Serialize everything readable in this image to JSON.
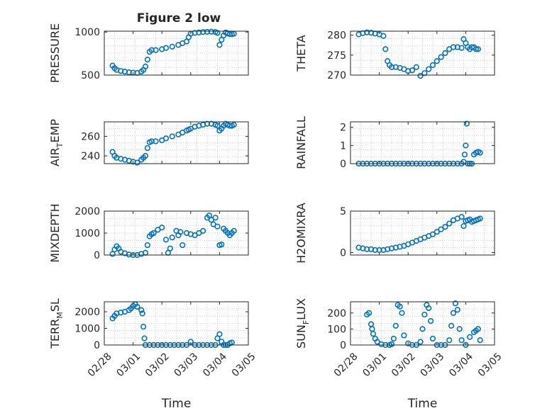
{
  "figure_title": "Figure 2 low",
  "colors": {
    "marker": "#0072BD",
    "grid": "#c8c8c8",
    "axis": "#262626",
    "background": "#ffffff"
  },
  "chart_data": [
    {
      "id": "pressure",
      "type": "scatter",
      "ylabel": "PRESSURE",
      "xlabel": "",
      "xlim": [
        0,
        7
      ],
      "ylim": [
        500,
        1010
      ],
      "yticks": [
        500,
        1000
      ],
      "ytick_labels": [
        "500",
        "1000"
      ],
      "xticks": [],
      "xtick_labels": [],
      "x": [
        0.4,
        0.5,
        0.6,
        0.8,
        1.0,
        1.2,
        1.4,
        1.6,
        1.8,
        1.9,
        2.0,
        2.1,
        2.2,
        2.3,
        2.5,
        2.8,
        3.0,
        3.3,
        3.6,
        3.8,
        4.0,
        4.1,
        4.2,
        4.4,
        4.6,
        4.8,
        5.0,
        5.2,
        5.4,
        5.5,
        5.6,
        5.7,
        5.8,
        5.9,
        6.0,
        6.1,
        6.2,
        6.3
      ],
      "y": [
        610,
        580,
        560,
        548,
        540,
        532,
        528,
        525,
        540,
        560,
        600,
        680,
        770,
        790,
        790,
        800,
        815,
        830,
        850,
        870,
        890,
        940,
        980,
        990,
        995,
        1000,
        1002,
        1004,
        1000,
        990,
        850,
        910,
        960,
        995,
        985,
        975,
        975,
        980
      ]
    },
    {
      "id": "theta",
      "type": "scatter",
      "ylabel": "THETA",
      "xlabel": "",
      "xlim": [
        0,
        7
      ],
      "ylim": [
        270,
        281
      ],
      "yticks": [
        270,
        275,
        280
      ],
      "ytick_labels": [
        "270",
        "275",
        "280"
      ],
      "xticks": [],
      "xtick_labels": [],
      "x": [
        0.4,
        0.6,
        0.8,
        1.0,
        1.2,
        1.4,
        1.6,
        1.7,
        1.8,
        1.9,
        2.0,
        2.2,
        2.4,
        2.6,
        2.8,
        3.0,
        3.2,
        3.4,
        3.6,
        3.8,
        4.0,
        4.2,
        4.4,
        4.6,
        4.8,
        5.0,
        5.2,
        5.4,
        5.5,
        5.6,
        5.7,
        5.8,
        5.9,
        6.0,
        6.1,
        6.2
      ],
      "y": [
        280.2,
        280.5,
        280.7,
        280.6,
        280.4,
        280.2,
        279.8,
        276.5,
        273.5,
        272.5,
        272.0,
        272.0,
        271.8,
        271.5,
        271.0,
        271.2,
        272.0,
        269.8,
        270.5,
        271.5,
        272.5,
        273.5,
        274.5,
        275.5,
        276.5,
        277.0,
        277.0,
        276.8,
        279.0,
        278.0,
        277.0,
        276.5,
        277.0,
        277.0,
        276.5,
        276.5
      ]
    },
    {
      "id": "air_temp",
      "type": "scatter",
      "ylabel": "AIR_TEMP",
      "ylabel_main": "AIR",
      "ylabel_sub": "T",
      "ylabel_tail": "EMP",
      "xlabel": "",
      "xlim": [
        0,
        7
      ],
      "ylim": [
        232,
        275
      ],
      "yticks": [
        240,
        260
      ],
      "ytick_labels": [
        "240",
        "260"
      ],
      "xticks": [],
      "xtick_labels": [],
      "x": [
        0.4,
        0.5,
        0.6,
        0.8,
        1.0,
        1.2,
        1.4,
        1.6,
        1.8,
        1.9,
        2.0,
        2.1,
        2.2,
        2.3,
        2.5,
        2.8,
        3.0,
        3.3,
        3.6,
        3.8,
        4.0,
        4.1,
        4.2,
        4.4,
        4.6,
        4.8,
        5.0,
        5.2,
        5.4,
        5.5,
        5.6,
        5.7,
        5.8,
        5.9,
        6.0,
        6.1,
        6.2,
        6.3
      ],
      "y": [
        244,
        240,
        238,
        237,
        236,
        235,
        234,
        233,
        236,
        238,
        240,
        248,
        254,
        255,
        255,
        256,
        258,
        260,
        262,
        264,
        266,
        267,
        268,
        270,
        271,
        272,
        273,
        273,
        272,
        271,
        266,
        268,
        271,
        273,
        272,
        271,
        271,
        272
      ]
    },
    {
      "id": "rainfall",
      "type": "scatter",
      "ylabel": "RAINFALL",
      "xlabel": "",
      "xlim": [
        0,
        7
      ],
      "ylim": [
        0,
        2.3
      ],
      "yticks": [
        0,
        1,
        2
      ],
      "ytick_labels": [
        "0",
        "1",
        "2"
      ],
      "xticks": [],
      "xtick_labels": [],
      "x": [
        0.4,
        0.6,
        0.8,
        1.0,
        1.2,
        1.4,
        1.6,
        1.8,
        2.0,
        2.2,
        2.4,
        2.6,
        2.8,
        3.0,
        3.2,
        3.4,
        3.6,
        3.8,
        4.0,
        4.2,
        4.4,
        4.6,
        4.8,
        5.0,
        5.2,
        5.4,
        5.5,
        5.55,
        5.6,
        5.65,
        5.7,
        5.8,
        5.9,
        6.0,
        6.1,
        6.2,
        6.3
      ],
      "y": [
        0,
        0,
        0,
        0,
        0,
        0,
        0,
        0,
        0,
        0,
        0,
        0,
        0,
        0,
        0,
        0,
        0,
        0,
        0,
        0,
        0,
        0,
        0,
        0,
        0,
        0,
        0.1,
        0.5,
        1.0,
        2.2,
        0,
        0,
        0,
        0.5,
        0.6,
        0.65,
        0.6
      ]
    },
    {
      "id": "mixdepth",
      "type": "scatter",
      "ylabel": "MIXDEPTH",
      "xlabel": "",
      "xlim": [
        0,
        7
      ],
      "ylim": [
        0,
        2000
      ],
      "yticks": [
        0,
        1000,
        2000
      ],
      "ytick_labels": [
        "0",
        "1000",
        "2000"
      ],
      "xticks": [],
      "xtick_labels": [],
      "x": [
        0.4,
        0.5,
        0.6,
        0.7,
        0.8,
        1.0,
        1.2,
        1.4,
        1.6,
        1.8,
        2.0,
        2.1,
        2.2,
        2.3,
        2.4,
        2.6,
        2.8,
        3.0,
        3.1,
        3.2,
        3.3,
        3.5,
        3.6,
        3.7,
        3.8,
        4.0,
        4.2,
        4.4,
        4.6,
        4.8,
        5.0,
        5.1,
        5.2,
        5.3,
        5.4,
        5.5,
        5.6,
        5.7,
        5.8,
        5.9,
        6.0,
        6.1,
        6.2,
        6.3
      ],
      "y": [
        50,
        250,
        400,
        300,
        150,
        80,
        20,
        0,
        0,
        50,
        100,
        450,
        850,
        950,
        1000,
        1150,
        1250,
        700,
        100,
        300,
        800,
        1100,
        900,
        1050,
        450,
        1000,
        950,
        900,
        1000,
        1100,
        1700,
        1800,
        1600,
        1400,
        1700,
        1300,
        450,
        480,
        1200,
        1100,
        1000,
        900,
        1000,
        1100
      ]
    },
    {
      "id": "h2omixra",
      "type": "scatter",
      "ylabel": "H2OMIXRA",
      "xlabel": "",
      "xlim": [
        0,
        7
      ],
      "ylim": [
        -0.3,
        5
      ],
      "yticks": [
        0,
        5
      ],
      "ytick_labels": [
        "0",
        "5"
      ],
      "xticks": [],
      "xtick_labels": [],
      "x": [
        0.4,
        0.6,
        0.8,
        1.0,
        1.2,
        1.4,
        1.6,
        1.8,
        2.0,
        2.2,
        2.4,
        2.6,
        2.8,
        3.0,
        3.2,
        3.4,
        3.6,
        3.8,
        4.0,
        4.2,
        4.4,
        4.6,
        4.8,
        5.0,
        5.2,
        5.4,
        5.5,
        5.6,
        5.7,
        5.8,
        5.9,
        6.0,
        6.1,
        6.2,
        6.3
      ],
      "y": [
        0.6,
        0.5,
        0.4,
        0.4,
        0.3,
        0.3,
        0.3,
        0.4,
        0.5,
        0.6,
        0.7,
        0.8,
        1.0,
        1.2,
        1.4,
        1.6,
        1.8,
        2.0,
        2.2,
        2.5,
        2.8,
        3.1,
        3.5,
        3.9,
        4.1,
        4.3,
        3.2,
        3.8,
        3.9,
        4.0,
        3.7,
        3.8,
        3.9,
        4.0,
        4.1
      ]
    },
    {
      "id": "terr_msl",
      "type": "scatter",
      "ylabel": "TERR_MSL",
      "ylabel_main": "TERR",
      "ylabel_sub": "M",
      "ylabel_tail": "SL",
      "xlabel": "Time",
      "xlim": [
        0,
        7
      ],
      "ylim": [
        0,
        2600
      ],
      "yticks": [
        0,
        1000,
        2000
      ],
      "ytick_labels": [
        "0",
        "1000",
        "2000"
      ],
      "xticks": [
        0,
        1.4,
        2.8,
        4.2,
        5.6,
        7.0
      ],
      "xtick_labels": [
        "02/28",
        "03/01",
        "03/02",
        "03/03",
        "03/04",
        "03/05"
      ],
      "x": [
        0.4,
        0.5,
        0.6,
        0.8,
        1.0,
        1.2,
        1.3,
        1.4,
        1.5,
        1.6,
        1.8,
        1.85,
        1.9,
        1.95,
        2.0,
        2.2,
        2.4,
        2.6,
        2.8,
        3.0,
        3.2,
        3.4,
        3.6,
        3.8,
        4.0,
        4.2,
        4.4,
        4.6,
        4.8,
        5.0,
        5.2,
        5.4,
        5.5,
        5.6,
        5.7,
        5.8,
        5.9,
        6.0,
        6.1,
        6.2
      ],
      "y": [
        1600,
        1750,
        1900,
        1950,
        2000,
        2100,
        2200,
        2350,
        2450,
        2300,
        2100,
        1900,
        1100,
        400,
        0,
        0,
        0,
        0,
        0,
        0,
        0,
        0,
        0,
        0,
        0,
        200,
        0,
        0,
        0,
        0,
        0,
        0,
        400,
        650,
        200,
        0,
        0,
        0,
        100,
        150
      ]
    },
    {
      "id": "sun_flux",
      "type": "scatter",
      "ylabel": "SUN_FLUX",
      "ylabel_main": "SUN",
      "ylabel_sub": "F",
      "ylabel_tail": "LUX",
      "xlabel": "Time",
      "xlim": [
        0,
        7
      ],
      "ylim": [
        0,
        270
      ],
      "yticks": [
        0,
        100,
        200
      ],
      "ytick_labels": [
        "0",
        "100",
        "200"
      ],
      "xticks": [
        0,
        1.4,
        2.8,
        4.2,
        5.6,
        7.0
      ],
      "xtick_labels": [
        "02/28",
        "03/01",
        "03/02",
        "03/03",
        "03/04",
        "03/05"
      ],
      "x": [
        0.8,
        0.9,
        1.0,
        1.05,
        1.1,
        1.2,
        1.3,
        1.5,
        1.7,
        1.9,
        2.0,
        2.1,
        2.2,
        2.3,
        2.4,
        2.5,
        2.6,
        2.8,
        3.0,
        3.2,
        3.4,
        3.5,
        3.6,
        3.7,
        3.8,
        3.9,
        4.0,
        4.2,
        4.4,
        4.6,
        4.8,
        4.9,
        5.0,
        5.1,
        5.2,
        5.3,
        5.4,
        5.6,
        5.8,
        6.0,
        6.1,
        6.2,
        6.3
      ],
      "y": [
        190,
        200,
        130,
        100,
        70,
        40,
        20,
        5,
        0,
        0,
        5,
        40,
        120,
        250,
        240,
        200,
        60,
        10,
        0,
        0,
        20,
        100,
        190,
        250,
        230,
        150,
        40,
        0,
        0,
        0,
        30,
        120,
        200,
        260,
        220,
        100,
        30,
        0,
        50,
        80,
        90,
        100,
        30
      ]
    }
  ]
}
